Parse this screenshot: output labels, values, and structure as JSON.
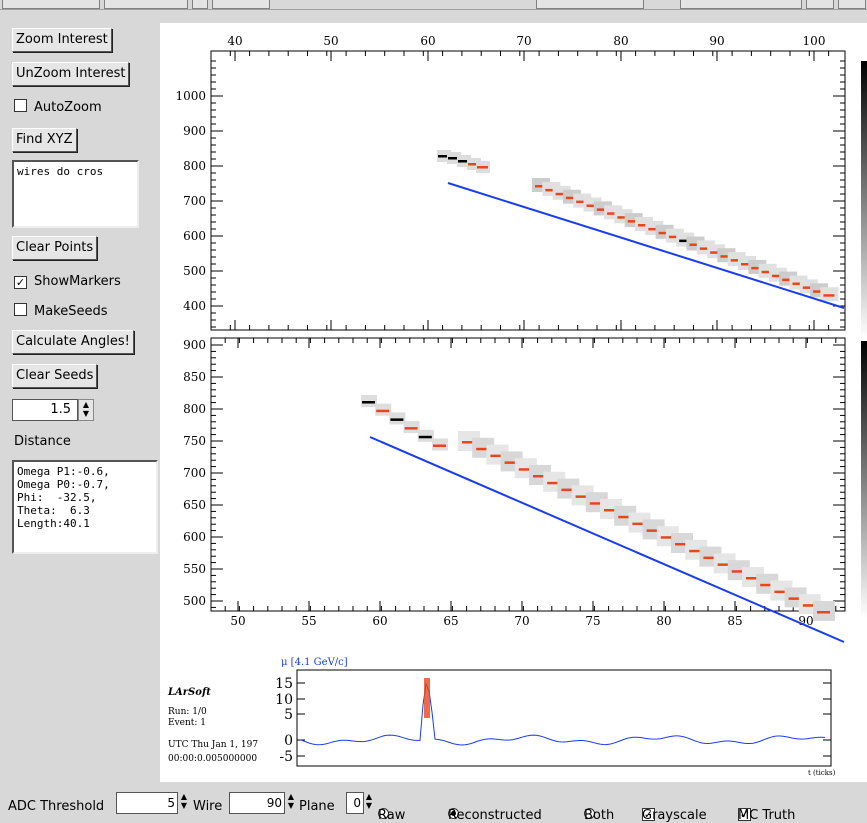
{
  "buttons": {
    "zoom_interest": "Zoom Interest",
    "unzoom_interest": "UnZoom Interest",
    "find_xyz": "Find XYZ",
    "clear_points": "Clear Points",
    "calculate_angles": "Calculate Angles!",
    "clear_seeds": "Clear Seeds"
  },
  "checkboxes": {
    "autozoom": {
      "label": "AutoZoom",
      "checked": false
    },
    "show_markers": {
      "label": "ShowMarkers",
      "checked": true
    },
    "make_seeds": {
      "label": "MakeSeeds",
      "checked": false
    }
  },
  "text_area_top": "wires do cros",
  "distance": {
    "value": "1.5",
    "label": "Distance"
  },
  "info_box": "Omega P1:-0.6,\nOmega P0:-0.7,\nPhi:  -32.5,\nTheta:  6.3\nLength:40.1",
  "bottom_bar": {
    "adc_label": "ADC Threshold",
    "adc_value": "5",
    "wire_label": "Wire",
    "wire_value": "90",
    "plane_label": "Plane",
    "plane_value": "0",
    "raw_label": "Raw",
    "reconstructed_label": "Reconstructed",
    "both_label": "Both",
    "grayscale_label": "Grayscale",
    "mc_truth_label": "MC Truth",
    "selected_mode": "Reconstructed",
    "grayscale_checked": true,
    "mc_truth_checked": true
  },
  "event_info": {
    "logo": "LArSoft",
    "run": "Run:   1/0",
    "event": "Event: 1",
    "utc": "UTC Thu Jan 1, 197",
    "time": "00:00:0.005000000"
  },
  "waveform_title": "μ [4.1 GeV/c]",
  "waveform_yticks": [
    "15",
    "10",
    "5",
    "0",
    "-5"
  ],
  "waveform_xlabel": "t (ticks)",
  "top_plot": {
    "xticks": [
      "40",
      "50",
      "60",
      "70",
      "80",
      "90",
      "100"
    ],
    "yticks": [
      "1000",
      "900",
      "800",
      "700",
      "600",
      "500",
      "400"
    ]
  },
  "bottom_plot": {
    "xticks": [
      "50",
      "55",
      "60",
      "65",
      "70",
      "75",
      "80",
      "85",
      "90"
    ],
    "yticks": [
      "900",
      "850",
      "800",
      "750",
      "700",
      "650",
      "600",
      "550",
      "500"
    ]
  },
  "colors": {
    "hit": "#e8461a",
    "mc_line": "#1a3cf0",
    "waveform": "#1a3cf0"
  }
}
